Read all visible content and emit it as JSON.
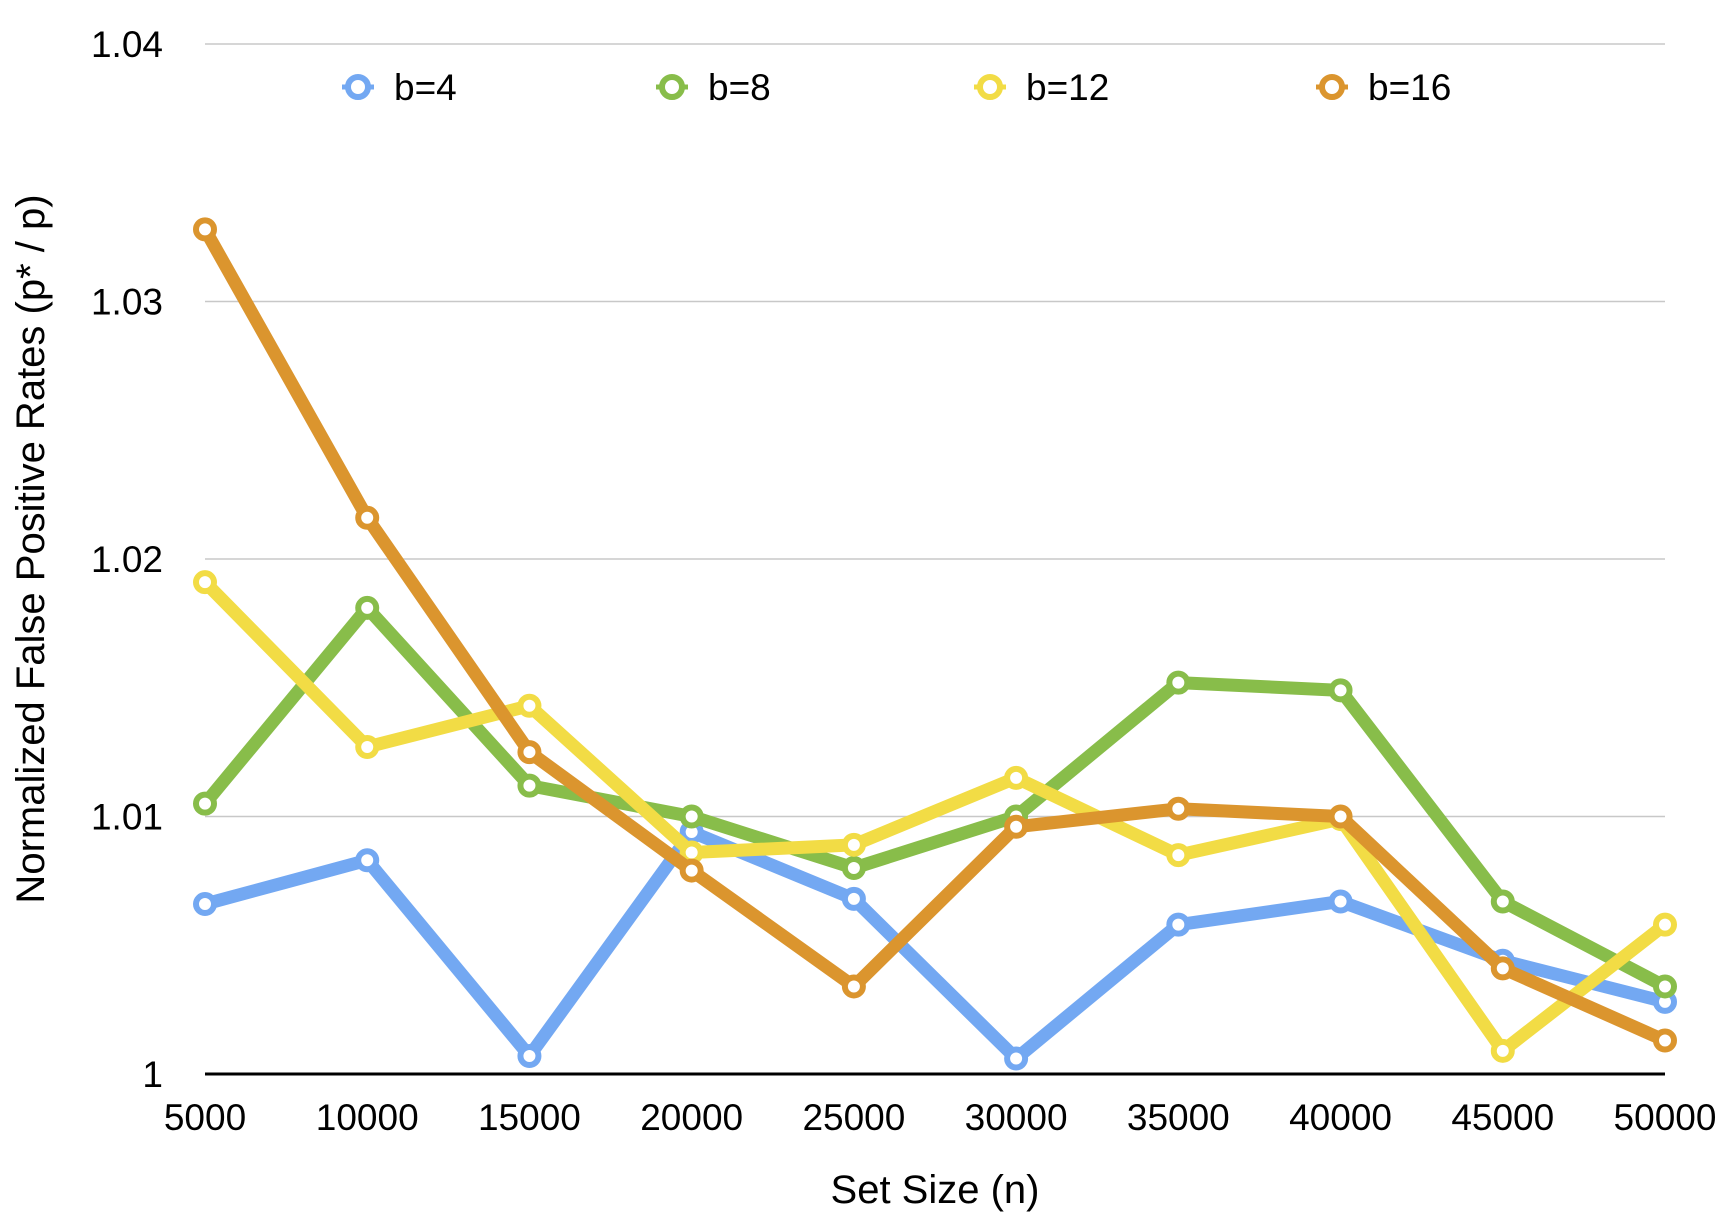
{
  "chart_data": {
    "type": "line",
    "xlabel": "Set Size (n)",
    "ylabel": "Normalized False Positive Rates (p* / p)",
    "x": [
      5000,
      10000,
      15000,
      20000,
      25000,
      30000,
      35000,
      40000,
      45000,
      50000
    ],
    "x_tick_labels": [
      "5000",
      "10000",
      "15000",
      "20000",
      "25000",
      "30000",
      "35000",
      "40000",
      "45000",
      "50000"
    ],
    "ylim": [
      1,
      1.04
    ],
    "y_ticks": [
      1,
      1.01,
      1.02,
      1.03,
      1.04
    ],
    "y_tick_labels": [
      "1",
      "1.01",
      "1.02",
      "1.03",
      "1.04"
    ],
    "grid": "horizontal",
    "legend_position": "top",
    "series": [
      {
        "name": "b=4",
        "color": "#73A8F2",
        "values": [
          1.0066,
          1.0083,
          1.0007,
          1.0094,
          1.0068,
          1.0006,
          1.0058,
          1.0067,
          1.0044,
          1.0028
        ]
      },
      {
        "name": "b=8",
        "color": "#88BD4A",
        "values": [
          1.0105,
          1.0181,
          1.0112,
          1.01,
          1.008,
          1.01,
          1.0152,
          1.0149,
          1.0067,
          1.0034
        ]
      },
      {
        "name": "b=12",
        "color": "#F2DC45",
        "values": [
          1.0191,
          1.0127,
          1.0143,
          1.0086,
          1.0089,
          1.0115,
          1.0085,
          1.0099,
          1.0009,
          1.0058
        ]
      },
      {
        "name": "b=16",
        "color": "#DB952E",
        "values": [
          1.0328,
          1.0216,
          1.0125,
          1.0079,
          1.0034,
          1.0096,
          1.0103,
          1.01,
          1.0041,
          1.0013
        ]
      }
    ]
  }
}
